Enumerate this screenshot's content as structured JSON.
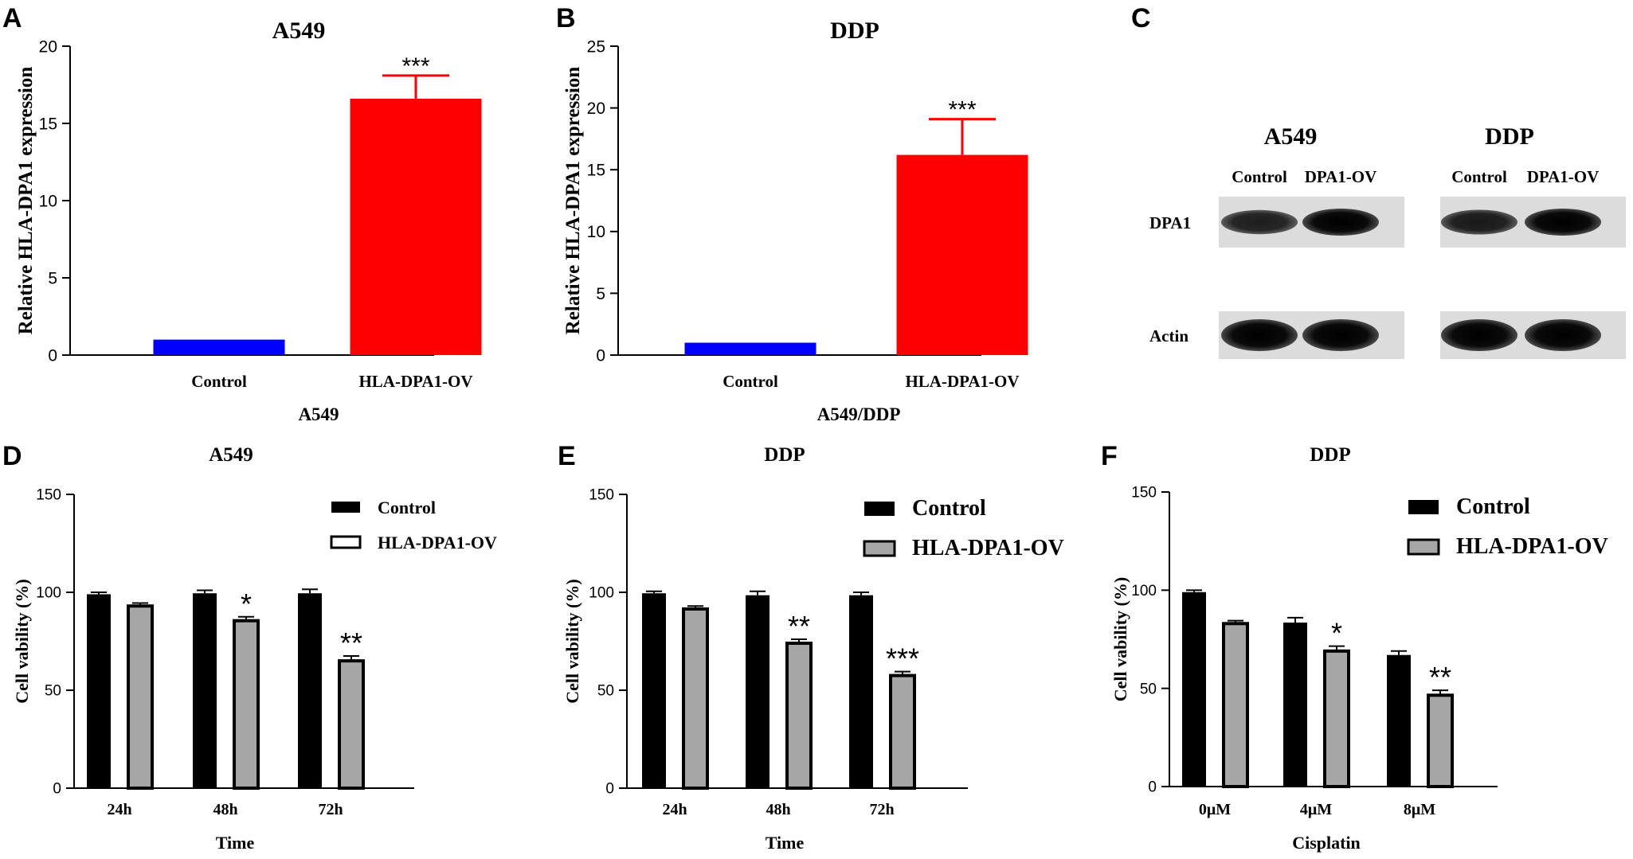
{
  "colors": {
    "control_a": "#0000ff",
    "overexp_a": "#ff0000",
    "control_d": "#000000",
    "overexp_d": "#a6a6a6",
    "overexp_legend_d": "#ffffff"
  },
  "chart_data": [
    {
      "letter": "A",
      "type": "bar",
      "title": "A549",
      "ylabel": "Relative HLA-DPA1 expression",
      "xlabel": "A549",
      "ylim": [
        0,
        20
      ],
      "yticks": [
        0,
        5,
        10,
        15,
        20
      ],
      "categories": [
        "Control",
        "HLA-DPA1-OV"
      ],
      "values": [
        1.0,
        16.6
      ],
      "errors": [
        0,
        1.5
      ],
      "colors": [
        "#0000ff",
        "#ff0000"
      ],
      "annotations": [
        "",
        "***"
      ]
    },
    {
      "letter": "B",
      "type": "bar",
      "title": "DDP",
      "ylabel": "Relative HLA-DPA1 expression",
      "xlabel": "A549/DDP",
      "ylim": [
        0,
        25
      ],
      "yticks": [
        0,
        5,
        10,
        15,
        20,
        25
      ],
      "categories": [
        "Control",
        "HLA-DPA1-OV"
      ],
      "values": [
        1.0,
        16.2
      ],
      "errors": [
        0,
        2.9
      ],
      "colors": [
        "#0000ff",
        "#ff0000"
      ],
      "annotations": [
        "",
        "***"
      ]
    },
    {
      "letter": "D",
      "type": "bar",
      "title": "A549",
      "ylabel": "Cell vability (%)",
      "xlabel": "Time",
      "ylim": [
        0,
        150
      ],
      "yticks": [
        0,
        50,
        100,
        150
      ],
      "categories": [
        "24h",
        "48h",
        "72h"
      ],
      "series": [
        {
          "name": "Control",
          "values": [
            99,
            99.5,
            99.5
          ],
          "errors": [
            1,
            1.5,
            2
          ]
        },
        {
          "name": "HLA-DPA1-OV",
          "values": [
            93,
            85.5,
            65
          ],
          "errors": [
            1.5,
            2,
            2.5
          ]
        }
      ],
      "annotations": [
        "",
        "*",
        "**"
      ],
      "legend": "top-right"
    },
    {
      "letter": "E",
      "type": "bar",
      "title": "DDP",
      "ylabel": "Cell vability (%)",
      "xlabel": "Time",
      "ylim": [
        0,
        150
      ],
      "yticks": [
        0,
        50,
        100,
        150
      ],
      "categories": [
        "24h",
        "48h",
        "72h"
      ],
      "series": [
        {
          "name": "Control",
          "values": [
            99.5,
            98.5,
            98.5
          ],
          "errors": [
            1,
            2,
            1.5
          ]
        },
        {
          "name": "HLA-DPA1-OV",
          "values": [
            91.5,
            74,
            57.5
          ],
          "errors": [
            1.5,
            2,
            2
          ]
        }
      ],
      "annotations": [
        "",
        "**",
        "***"
      ],
      "legend": "top-right"
    },
    {
      "letter": "F",
      "type": "bar",
      "title": "DDP",
      "ylabel": "Cell vability (%)",
      "xlabel": "Cisplatin",
      "ylim": [
        0,
        150
      ],
      "yticks": [
        0,
        50,
        100,
        150
      ],
      "categories": [
        "0μM",
        "4μM",
        "8μM"
      ],
      "series": [
        {
          "name": "Control",
          "values": [
            99,
            83.5,
            67
          ],
          "errors": [
            1,
            2.5,
            2
          ]
        },
        {
          "name": "HLA-DPA1-OV",
          "values": [
            83,
            69,
            46.5
          ],
          "errors": [
            1.5,
            2.5,
            2.5
          ]
        }
      ],
      "annotations": [
        "",
        "*",
        "**"
      ],
      "legend": "top-right"
    }
  ],
  "blot": {
    "letter": "C",
    "groups": [
      {
        "title": "A549",
        "lanes": [
          "Control",
          "DPA1-OV"
        ]
      },
      {
        "title": "DDP",
        "lanes": [
          "Control",
          "DPA1-OV"
        ]
      }
    ],
    "rows": [
      {
        "label": "DPA1",
        "intensity": [
          0.7,
          1.0,
          0.75,
          1.0
        ]
      },
      {
        "label": "Actin",
        "intensity": [
          1.0,
          1.0,
          1.0,
          1.0
        ]
      }
    ]
  }
}
